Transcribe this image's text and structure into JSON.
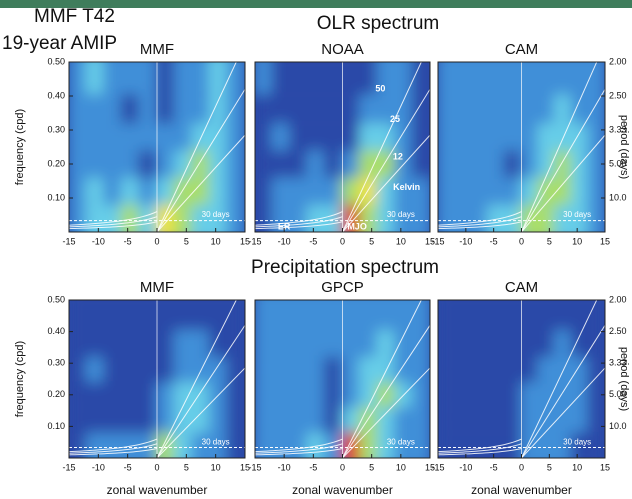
{
  "figure": {
    "run": "MMF T42",
    "period": "19-year AMIP",
    "sections": [
      "OLR spectrum",
      "Precipitation spectrum"
    ]
  },
  "colormap": [
    "#2a48a8",
    "#3f8fd8",
    "#66cde8",
    "#a9de6a",
    "#f0e33a",
    "#e0301e"
  ],
  "chart_data": [
    {
      "type": "heatmap",
      "title": "MMF",
      "x": [
        -13.5,
        -10.5,
        -7.5,
        -4.5,
        -1.5,
        1.5,
        4.5,
        7.5,
        10.5,
        13.5
      ],
      "y": [
        0.04,
        0.12,
        0.2,
        0.28,
        0.36,
        0.45
      ],
      "z": [
        [
          1,
          2,
          2,
          3,
          2,
          4,
          3,
          2,
          2,
          1
        ],
        [
          1,
          2,
          1,
          2,
          1,
          2,
          3,
          3,
          2,
          1
        ],
        [
          1,
          1,
          1,
          1,
          0,
          1,
          2,
          3,
          2,
          1
        ],
        [
          1,
          1,
          1,
          1,
          1,
          1,
          1,
          2,
          2,
          1
        ],
        [
          1,
          1,
          1,
          0,
          1,
          0,
          1,
          1,
          2,
          1
        ],
        [
          1,
          2,
          1,
          1,
          1,
          0,
          1,
          1,
          2,
          1
        ]
      ],
      "xlim": [
        -15,
        15
      ],
      "xticks": [
        -15,
        -10,
        -5,
        0,
        5,
        10,
        15
      ],
      "ylim": [
        0,
        0.5
      ],
      "yticks": [
        {
          "value": 0.1,
          "label": "0.10"
        },
        {
          "value": 0.2,
          "label": "0.20"
        },
        {
          "value": 0.3,
          "label": "0.30"
        },
        {
          "value": 0.4,
          "label": "0.40"
        },
        {
          "value": 0.5,
          "label": "0.50"
        }
      ],
      "ylabel": "frequency (cpd)",
      "annotations": [
        "30 days"
      ]
    },
    {
      "type": "heatmap",
      "title": "NOAA",
      "x": [
        -13.5,
        -10.5,
        -7.5,
        -4.5,
        -1.5,
        1.5,
        4.5,
        7.5,
        10.5,
        13.5
      ],
      "y": [
        0.04,
        0.12,
        0.2,
        0.28,
        0.36,
        0.45
      ],
      "z": [
        [
          0,
          1,
          1,
          2,
          2,
          5,
          3,
          2,
          1,
          1
        ],
        [
          0,
          1,
          1,
          1,
          1,
          3,
          4,
          2,
          1,
          1
        ],
        [
          0,
          0,
          0,
          1,
          0,
          1,
          3,
          3,
          1,
          0
        ],
        [
          0,
          1,
          0,
          0,
          0,
          0,
          2,
          2,
          1,
          0
        ],
        [
          0,
          0,
          0,
          0,
          0,
          0,
          1,
          1,
          1,
          0
        ],
        [
          1,
          0,
          0,
          0,
          0,
          0,
          0,
          1,
          1,
          0
        ]
      ],
      "xlim": [
        -15,
        15
      ],
      "xticks": [
        -15,
        -10,
        -5,
        0,
        5,
        10,
        15
      ],
      "ylim": [
        0,
        0.5
      ],
      "annotations": [
        "30 days",
        "50",
        "25",
        "12",
        "Kelvin",
        "ER",
        "MJO"
      ]
    },
    {
      "type": "heatmap",
      "title": "CAM",
      "x": [
        -13.5,
        -10.5,
        -7.5,
        -4.5,
        -1.5,
        1.5,
        4.5,
        7.5,
        10.5,
        13.5
      ],
      "y": [
        0.04,
        0.12,
        0.2,
        0.28,
        0.36,
        0.45
      ],
      "z": [
        [
          1,
          1,
          1,
          2,
          2,
          3,
          3,
          2,
          2,
          1
        ],
        [
          1,
          1,
          1,
          1,
          1,
          2,
          3,
          3,
          2,
          1
        ],
        [
          1,
          1,
          1,
          1,
          0,
          1,
          2,
          3,
          2,
          1
        ],
        [
          1,
          1,
          1,
          1,
          1,
          1,
          2,
          2,
          2,
          1
        ],
        [
          1,
          1,
          1,
          1,
          1,
          1,
          1,
          2,
          1,
          1
        ],
        [
          1,
          1,
          1,
          1,
          1,
          1,
          1,
          1,
          1,
          1
        ]
      ],
      "xlim": [
        -15,
        15
      ],
      "xticks": [
        -15,
        -10,
        -5,
        0,
        5,
        10,
        15
      ],
      "ylim": [
        0,
        0.5
      ],
      "y2ticks": [
        {
          "value": 2,
          "label": "2.00"
        },
        {
          "value": 2.5,
          "label": "2.50"
        },
        3.33,
        {
          "value": 5,
          "label": "5.00"
        },
        {
          "value": 10,
          "label": "10.0"
        }
      ],
      "y2label": "period (days)",
      "annotations": [
        "30 days"
      ]
    },
    {
      "type": "heatmap",
      "title": "MMF",
      "x": [
        -13.5,
        -10.5,
        -7.5,
        -4.5,
        -1.5,
        1.5,
        4.5,
        7.5,
        10.5,
        13.5
      ],
      "y": [
        0.04,
        0.12,
        0.2,
        0.28,
        0.36,
        0.45
      ],
      "z": [
        [
          0,
          1,
          1,
          1,
          1,
          3,
          2,
          1,
          1,
          0
        ],
        [
          0,
          0,
          0,
          0,
          0,
          1,
          2,
          2,
          1,
          0
        ],
        [
          0,
          0,
          0,
          0,
          0,
          1,
          2,
          2,
          1,
          0
        ],
        [
          0,
          1,
          0,
          0,
          0,
          0,
          1,
          1,
          1,
          0
        ],
        [
          0,
          0,
          0,
          0,
          0,
          0,
          1,
          1,
          0,
          0
        ],
        [
          0,
          0,
          0,
          0,
          0,
          0,
          0,
          0,
          0,
          0
        ]
      ],
      "xlim": [
        -15,
        15
      ],
      "xticks": [
        -15,
        -10,
        -5,
        0,
        5,
        10,
        15
      ],
      "ylim": [
        0,
        0.5
      ],
      "yticks": [
        {
          "value": 0.1,
          "label": "0.10"
        },
        {
          "value": 0.2,
          "label": "0.20"
        },
        {
          "value": 0.3,
          "label": "0.30"
        },
        {
          "value": 0.4,
          "label": "0.40"
        },
        {
          "value": 0.5,
          "label": "0.50"
        }
      ],
      "ylabel": "frequency (cpd)",
      "xlabel": "zonal wavenumber",
      "annotations": [
        "30 days"
      ]
    },
    {
      "type": "heatmap",
      "title": "GPCP",
      "x": [
        -13.5,
        -10.5,
        -7.5,
        -4.5,
        -1.5,
        1.5,
        4.5,
        7.5,
        10.5,
        13.5
      ],
      "y": [
        0.04,
        0.12,
        0.2,
        0.28,
        0.36,
        0.45
      ],
      "z": [
        [
          1,
          1,
          1,
          2,
          1,
          5,
          3,
          2,
          1,
          1
        ],
        [
          1,
          1,
          1,
          1,
          0,
          2,
          3,
          2,
          1,
          1
        ],
        [
          1,
          1,
          1,
          1,
          0,
          1,
          2,
          3,
          2,
          1
        ],
        [
          1,
          1,
          1,
          1,
          0,
          1,
          2,
          2,
          1,
          1
        ],
        [
          1,
          1,
          1,
          1,
          1,
          1,
          1,
          2,
          1,
          1
        ],
        [
          1,
          1,
          1,
          1,
          1,
          1,
          1,
          1,
          1,
          1
        ]
      ],
      "xlim": [
        -15,
        15
      ],
      "xticks": [
        -15,
        -10,
        -5,
        0,
        5,
        10,
        15
      ],
      "ylim": [
        0,
        0.5
      ],
      "xlabel": "zonal wavenumber",
      "annotations": [
        "30 days"
      ]
    },
    {
      "type": "heatmap",
      "title": "CAM",
      "x": [
        -13.5,
        -10.5,
        -7.5,
        -4.5,
        -1.5,
        1.5,
        4.5,
        7.5,
        10.5,
        13.5
      ],
      "y": [
        0.04,
        0.12,
        0.2,
        0.28,
        0.36,
        0.45
      ],
      "z": [
        [
          0,
          0,
          0,
          0,
          0,
          1,
          1,
          1,
          0,
          0
        ],
        [
          0,
          0,
          0,
          0,
          0,
          1,
          1,
          1,
          1,
          0
        ],
        [
          0,
          0,
          0,
          0,
          0,
          1,
          1,
          1,
          1,
          0
        ],
        [
          0,
          0,
          0,
          0,
          0,
          0,
          1,
          1,
          1,
          0
        ],
        [
          0,
          0,
          0,
          0,
          0,
          0,
          0,
          1,
          0,
          0
        ],
        [
          0,
          0,
          0,
          0,
          0,
          0,
          0,
          0,
          0,
          0
        ]
      ],
      "xlim": [
        -15,
        15
      ],
      "xticks": [
        -15,
        -10,
        -5,
        0,
        5,
        10,
        15
      ],
      "ylim": [
        0,
        0.5
      ],
      "y2ticks": [
        {
          "value": 2,
          "label": "2.00"
        },
        {
          "value": 2.5,
          "label": "2.50"
        },
        3.33,
        {
          "value": 5,
          "label": "5.00"
        },
        {
          "value": 10,
          "label": "10.0"
        }
      ],
      "y2label": "period (days)",
      "xlabel": "zonal wavenumber",
      "annotations": [
        "30 days"
      ]
    }
  ]
}
